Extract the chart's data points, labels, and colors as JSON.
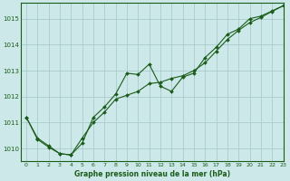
{
  "title": "Graphe pression niveau de la mer (hPa)",
  "bg_color": "#cce8e8",
  "grid_color": "#aacccc",
  "line_color": "#1a5c1a",
  "marker_color": "#1a5c1a",
  "xlim": [
    -0.5,
    23
  ],
  "ylim": [
    1009.5,
    1015.6
  ],
  "yticks": [
    1010,
    1011,
    1012,
    1013,
    1014,
    1015
  ],
  "xticks": [
    0,
    1,
    2,
    3,
    4,
    5,
    6,
    7,
    8,
    9,
    10,
    11,
    12,
    13,
    14,
    15,
    16,
    17,
    18,
    19,
    20,
    21,
    22,
    23
  ],
  "series1_x": [
    0,
    1,
    2,
    3,
    4,
    5,
    6,
    7,
    8,
    9,
    10,
    11,
    12,
    13,
    14,
    15,
    16,
    17,
    18,
    19,
    20,
    21,
    22,
    23
  ],
  "series1_y": [
    1011.2,
    1010.4,
    1010.1,
    1009.8,
    1009.75,
    1010.2,
    1011.2,
    1011.6,
    1012.1,
    1012.9,
    1012.85,
    1013.25,
    1012.4,
    1012.2,
    1012.75,
    1012.9,
    1013.5,
    1013.9,
    1014.4,
    1014.6,
    1015.0,
    1015.1,
    1015.3,
    1015.5
  ],
  "series2_x": [
    0,
    1,
    2,
    3,
    4,
    5,
    6,
    7,
    8,
    9,
    10,
    11,
    12,
    13,
    14,
    15,
    16,
    17,
    18,
    19,
    20,
    21,
    22,
    23
  ],
  "series2_y": [
    1011.2,
    1010.35,
    1010.05,
    1009.8,
    1009.75,
    1010.4,
    1011.0,
    1011.4,
    1011.9,
    1012.05,
    1012.2,
    1012.5,
    1012.55,
    1012.7,
    1012.8,
    1013.0,
    1013.3,
    1013.75,
    1014.2,
    1014.55,
    1014.85,
    1015.05,
    1015.28,
    1015.5
  ]
}
